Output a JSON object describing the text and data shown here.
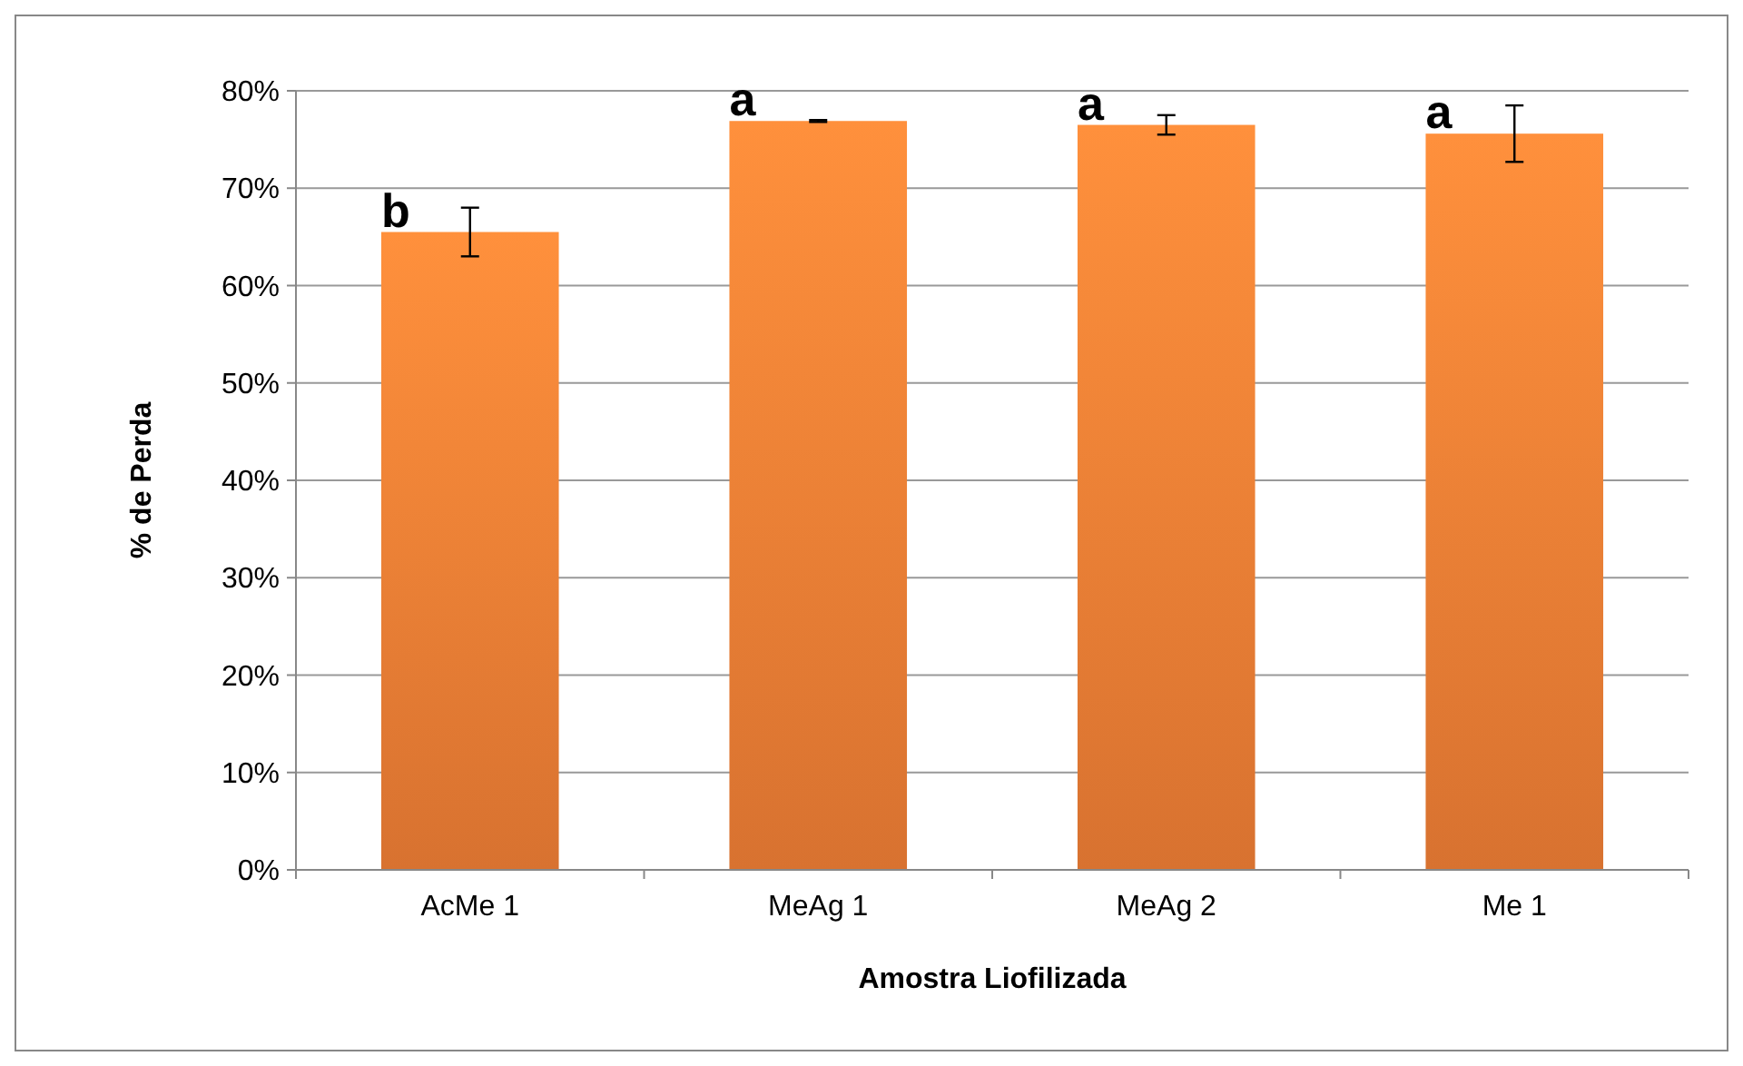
{
  "chart_data": {
    "type": "bar",
    "xlabel": "Amostra Liofilizada",
    "ylabel": "% de Perda",
    "categories": [
      "AcMe 1",
      "MeAg 1",
      "MeAg 2",
      "Me 1"
    ],
    "values": [
      65.5,
      76.9,
      76.5,
      75.6
    ],
    "color": "#f07f35",
    "errors": [
      2.5,
      0.1,
      1.0,
      2.9
    ],
    "ylim": [
      0,
      80
    ],
    "yticks": [
      {
        "value": 0,
        "label": "0%"
      },
      {
        "value": 10,
        "label": "10%"
      },
      {
        "value": 20,
        "label": "20%"
      },
      {
        "value": 30,
        "label": "30%"
      },
      {
        "value": 40,
        "label": "40%"
      },
      {
        "value": 50,
        "label": "50%"
      },
      {
        "value": 60,
        "label": "60%"
      },
      {
        "value": 70,
        "label": "70%"
      },
      {
        "value": 80,
        "label": "80%"
      }
    ],
    "grid": "y",
    "annotations": [
      {
        "text": "b",
        "x": "AcMe 1",
        "y": 65.5
      },
      {
        "text": "a",
        "x": "MeAg 1",
        "y": 76.9
      },
      {
        "text": "a",
        "x": "MeAg 2",
        "y": 76.5
      },
      {
        "text": "a",
        "x": "Me 1",
        "y": 75.6
      }
    ]
  }
}
